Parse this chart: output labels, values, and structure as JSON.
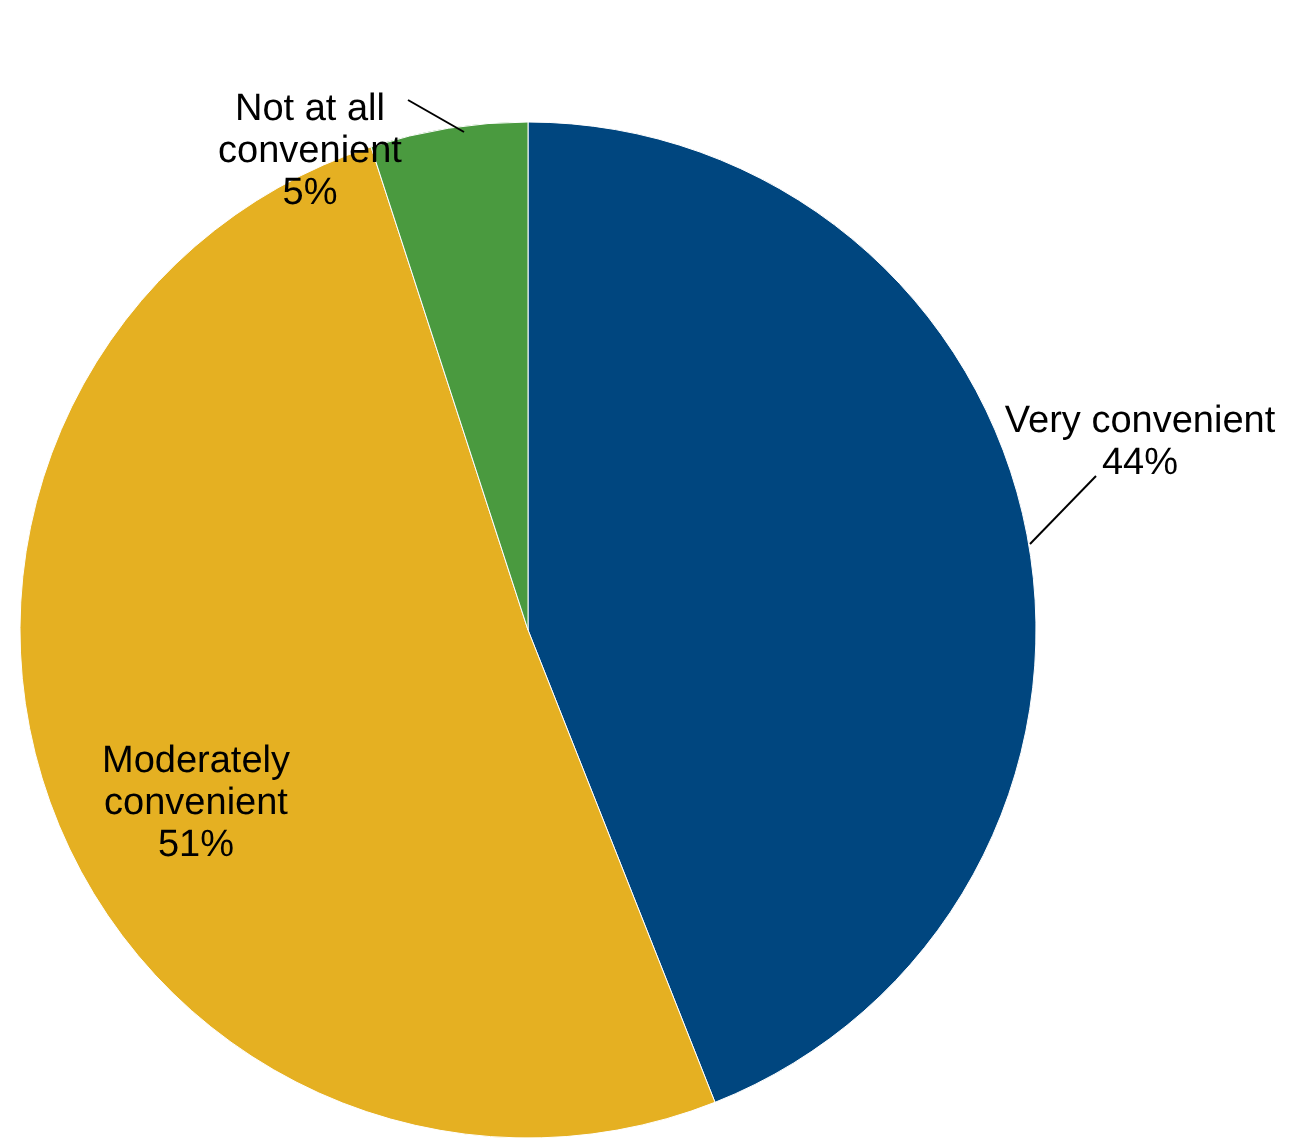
{
  "chart_data": {
    "type": "pie",
    "categories": [
      "Very convenient",
      "Moderately convenient",
      "Not at all convenient"
    ],
    "values": [
      44,
      51,
      5
    ],
    "value_labels": [
      "44%",
      "51%",
      "5%"
    ],
    "colors": [
      "#00467f",
      "#e5b022",
      "#4a9a3f"
    ]
  }
}
